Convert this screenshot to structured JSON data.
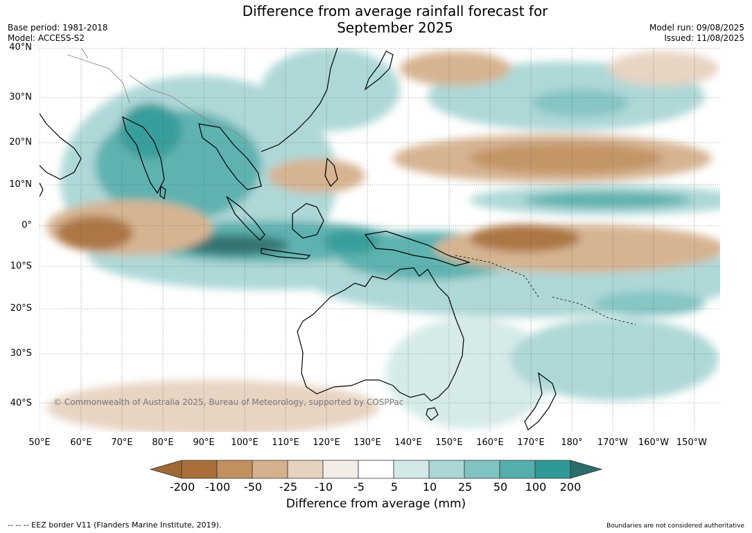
{
  "title": {
    "line1": "Difference from average rainfall forecast for",
    "line2": "September 2025"
  },
  "meta": {
    "base_period": "Base period: 1981-2018",
    "model": "Model: ACCESS-S2",
    "model_run": "Model run: 09/08/2025",
    "issued": "Issued: 11/08/2025"
  },
  "map": {
    "lat_labels": [
      "40°N",
      "30°N",
      "20°N",
      "10°N",
      "0°",
      "10°S",
      "20°S",
      "30°S",
      "40°S"
    ],
    "lon_labels": [
      "50°E",
      "60°E",
      "70°E",
      "80°E",
      "90°E",
      "100°E",
      "110°E",
      "120°E",
      "130°E",
      "140°E",
      "150°E",
      "160°E",
      "170°E",
      "180°",
      "170°W",
      "160°W",
      "150°W"
    ],
    "watermark": "© Commonwealth of Australia 2025, Bureau of Meteorology, supported by COSPPac"
  },
  "colorbar": {
    "ticks": [
      "-200",
      "-100",
      "-50",
      "-25",
      "-10",
      "-5",
      "5",
      "10",
      "25",
      "50",
      "100",
      "200"
    ],
    "colors": [
      "#9e6935",
      "#a86f3a",
      "#c0905f",
      "#d4b08c",
      "#e6d2c0",
      "#f2ece6",
      "#ffffff",
      "#d3e9e8",
      "#aad6d5",
      "#80c3c1",
      "#56afac",
      "#2e9996",
      "#2a6d6a"
    ],
    "label": "Difference from average (mm)"
  },
  "footer": {
    "left": "--  --  -- EEZ border V11 (Flanders Marine Institute, 2019).",
    "right": "Boundaries are not considered authoritative"
  }
}
